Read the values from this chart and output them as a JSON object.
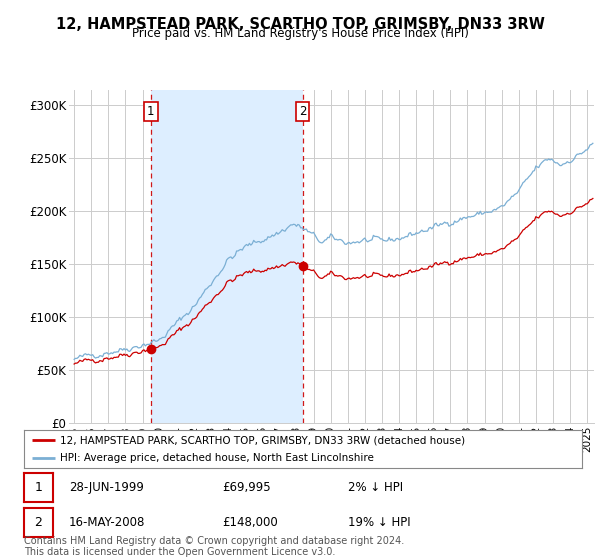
{
  "title": "12, HAMPSTEAD PARK, SCARTHO TOP, GRIMSBY, DN33 3RW",
  "subtitle": "Price paid vs. HM Land Registry's House Price Index (HPI)",
  "ylabel_ticks": [
    "£0",
    "£50K",
    "£100K",
    "£150K",
    "£200K",
    "£250K",
    "£300K"
  ],
  "ytick_vals": [
    0,
    50000,
    100000,
    150000,
    200000,
    250000,
    300000
  ],
  "ylim": [
    0,
    315000
  ],
  "xlim_start": 1994.7,
  "xlim_end": 2025.4,
  "hpi_color": "#7bafd4",
  "house_color": "#cc0000",
  "shade_color": "#ddeeff",
  "sale1_year": 1999.49,
  "sale1_price": 69995,
  "sale1_label": "1",
  "sale1_date": "28-JUN-1999",
  "sale1_pct": "2% ↓ HPI",
  "sale2_year": 2008.37,
  "sale2_price": 148000,
  "sale2_label": "2",
  "sale2_date": "16-MAY-2008",
  "sale2_pct": "19% ↓ HPI",
  "legend_house": "12, HAMPSTEAD PARK, SCARTHO TOP, GRIMSBY, DN33 3RW (detached house)",
  "legend_hpi": "HPI: Average price, detached house, North East Lincolnshire",
  "footer": "Contains HM Land Registry data © Crown copyright and database right 2024.\nThis data is licensed under the Open Government Licence v3.0.",
  "background_color": "#ffffff",
  "grid_color": "#cccccc"
}
